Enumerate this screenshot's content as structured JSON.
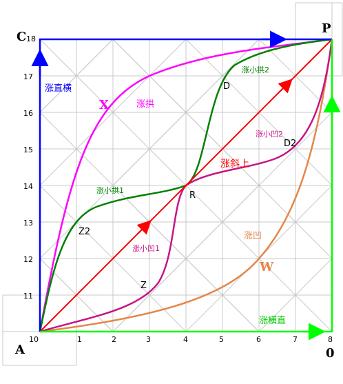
{
  "axes": {
    "x_ticks": [
      "1",
      "2",
      "3",
      "4",
      "5",
      "6",
      "7",
      "8"
    ],
    "y_ticks": [
      "11",
      "12",
      "13",
      "14",
      "15",
      "16",
      "17"
    ],
    "origin_label": "10",
    "top_left_number": "18"
  },
  "corners": {
    "A": "A",
    "C": "C",
    "P": "P",
    "O": "0"
  },
  "points": {
    "R": "R",
    "D": "D",
    "D2": "D2",
    "Z": "Z",
    "Z2": "Z2",
    "X": "X",
    "W": "W"
  },
  "labels": {
    "zhi_heng": "涨直横",
    "heng_zhi": "涨横直",
    "gong": "涨拱",
    "ao": "涨凹",
    "xie_shang": "涨斜上",
    "xiao_gong_1": "涨小拱1",
    "xiao_gong_2": "涨小拱2",
    "xiao_ao_1": "涨小凹1",
    "xiao_ao_2": "涨小凹2"
  },
  "colors": {
    "grid": "#c8c8c8",
    "blue": "#0000ff",
    "green": "#00ff00",
    "red": "#ff0000",
    "magenta": "#ff00ff",
    "dark_green": "#008000",
    "purple": "#c71585",
    "orange": "#e4864a"
  }
}
